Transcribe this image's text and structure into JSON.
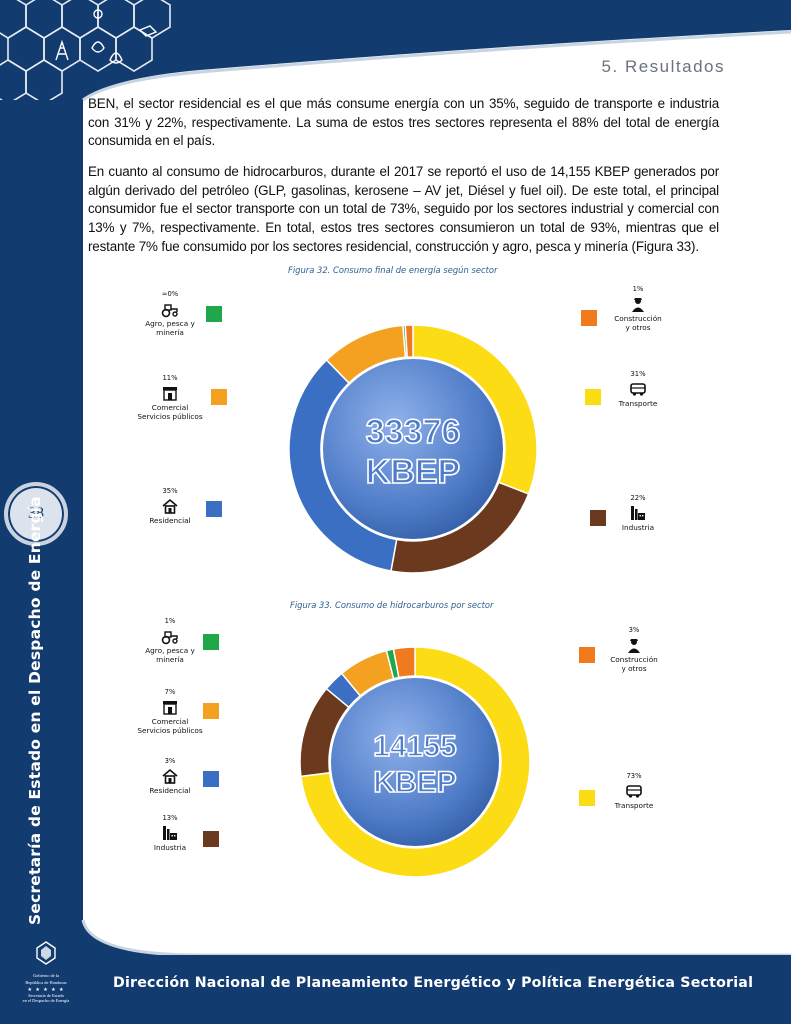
{
  "section_title": "5. Resultados",
  "page_number": "38",
  "vertical_title": "Secretaría de Estado en el Despacho de Energía",
  "footer_text": "Dirección Nacional de Planeamiento  Energético y Política Energética Sectorial",
  "logo": {
    "line1": "Gobierno de la",
    "line2": "República de Honduras",
    "stars": "★ ★ ★ ★ ★",
    "line3": "Secretaría de Estado",
    "line4": "en el Despacho de Energía"
  },
  "paragraphs": [
    "BEN, el sector residencial es el que más consume energía con un 35%, seguido de transporte e industria con 31% y 22%, respectivamente. La suma de estos tres sectores representa el 88% del total de energía consumida en el país.",
    "En cuanto al consumo de hidrocarburos, durante el 2017 se reportó el uso de 14,155 KBEP generados por algún derivado del petróleo (GLP, gasolinas, kerosene – AV jet, Diésel y fuel oil). De este total, el principal consumidor fue el sector transporte con un total de 73%, seguido por los sectores industrial y comercial con 13% y 7%, respectivamente. En total, estos tres sectores consumieron un total de 93%, mientras que el restante 7% fue consumido por los sectores residencial, construcción y agro, pesca y minería (Figura 33)."
  ],
  "colors": {
    "transporte": "#fcdc14",
    "industria": "#6b3a1e",
    "residencial": "#3a6fc4",
    "comercial": "#f4a020",
    "agro": "#1ea84a",
    "construccion": "#f07a1e",
    "sidebar": "#123b70"
  },
  "chart_data": [
    {
      "type": "pie",
      "title": "Figura 32. Consumo final de energía según sector",
      "center_value": "33376",
      "center_unit": "KBEP",
      "slices": [
        {
          "key": "transporte",
          "label": "Transporte",
          "pct_label": "31%",
          "value": 31,
          "icon": "bus-icon"
        },
        {
          "key": "industria",
          "label": "Industria",
          "pct_label": "22%",
          "value": 22,
          "icon": "factory-icon"
        },
        {
          "key": "residencial",
          "label": "Residencial",
          "pct_label": "35%",
          "value": 35,
          "icon": "house-icon"
        },
        {
          "key": "comercial",
          "label": "Comercial\nServicios públicos",
          "pct_label": "11%",
          "value": 11,
          "icon": "store-icon"
        },
        {
          "key": "agro",
          "label": "Agro, pesca y\nminería",
          "pct_label": "≈0%",
          "value": 0.3,
          "icon": "tractor-icon"
        },
        {
          "key": "construccion",
          "label": "Construcción\ny otros",
          "pct_label": "1%",
          "value": 1,
          "icon": "worker-icon"
        }
      ]
    },
    {
      "type": "pie",
      "title": "Figura 33. Consumo de hidrocarburos por sector",
      "center_value": "14155",
      "center_unit": "KBEP",
      "slices": [
        {
          "key": "transporte",
          "label": "Transporte",
          "pct_label": "73%",
          "value": 73,
          "icon": "bus-icon"
        },
        {
          "key": "industria",
          "label": "Industria",
          "pct_label": "13%",
          "value": 13,
          "icon": "factory-icon"
        },
        {
          "key": "residencial",
          "label": "Residencial",
          "pct_label": "3%",
          "value": 3,
          "icon": "house-icon"
        },
        {
          "key": "comercial",
          "label": "Comercial\nServicios públicos",
          "pct_label": "7%",
          "value": 7,
          "icon": "store-icon"
        },
        {
          "key": "agro",
          "label": "Agro, pesca y\nminería",
          "pct_label": "1%",
          "value": 1,
          "icon": "tractor-icon"
        },
        {
          "key": "construccion",
          "label": "Construcción\ny otros",
          "pct_label": "3%",
          "value": 3,
          "icon": "worker-icon"
        }
      ]
    }
  ]
}
